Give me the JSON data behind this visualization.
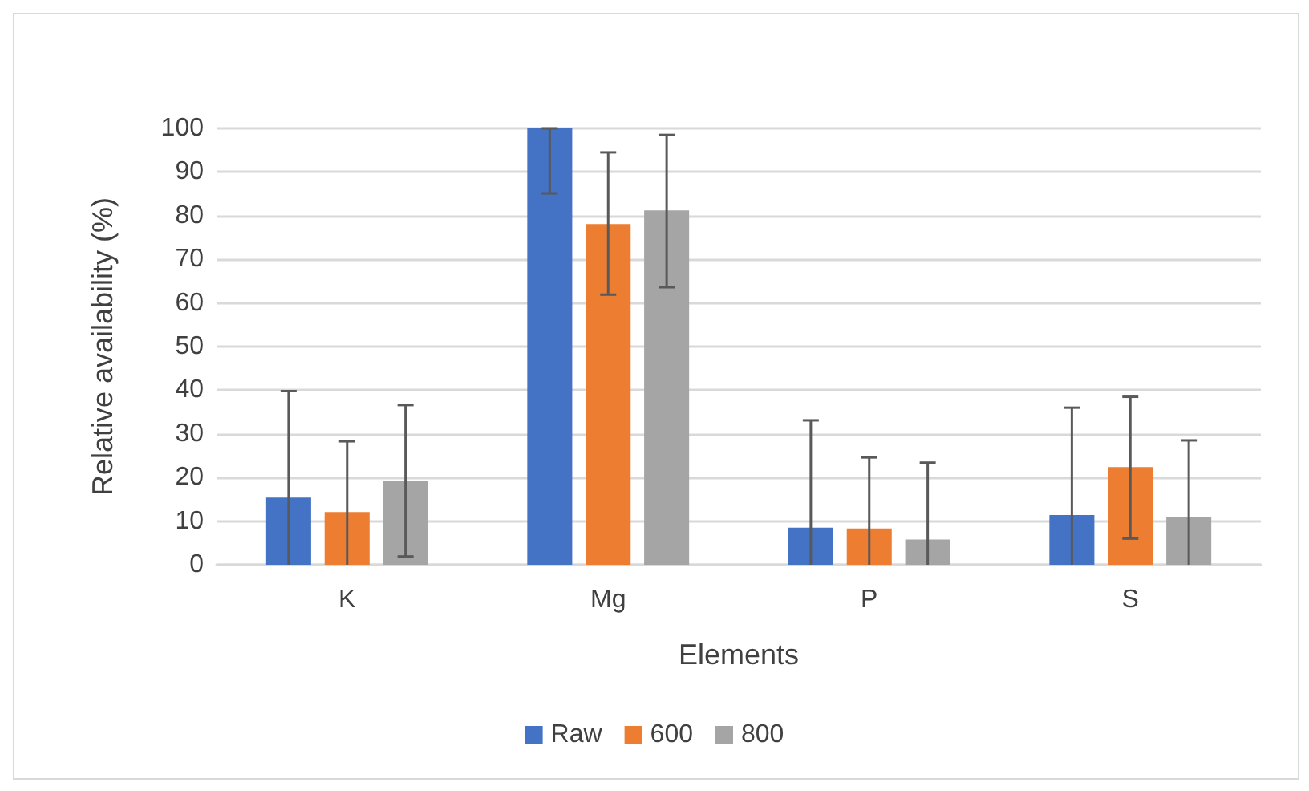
{
  "chart_data": {
    "type": "bar",
    "xlabel": "Elements",
    "ylabel": "Relative availability (%)",
    "categories": [
      "K",
      "Mg",
      "P",
      "S"
    ],
    "series": [
      {
        "name": "Raw",
        "color": "#4472c4",
        "values": [
          15.4,
          100,
          8.5,
          11.4
        ],
        "errors": [
          [
            0,
            39.8
          ],
          [
            85.1,
            100
          ],
          [
            0,
            33.1
          ],
          [
            0,
            36.0
          ]
        ]
      },
      {
        "name": "600",
        "color": "#ed7d31",
        "values": [
          12.1,
          78.1,
          8.3,
          22.4
        ],
        "errors": [
          [
            0,
            28.3
          ],
          [
            61.9,
            94.5
          ],
          [
            0,
            24.6
          ],
          [
            6.0,
            38.5
          ]
        ]
      },
      {
        "name": "800",
        "color": "#a5a5a5",
        "values": [
          19.1,
          81.2,
          5.8,
          11.0
        ],
        "errors": [
          [
            1.9,
            36.6
          ],
          [
            63.6,
            98.5
          ],
          [
            0,
            23.4
          ],
          [
            0,
            28.5
          ]
        ]
      }
    ],
    "ylim": [
      0,
      100
    ],
    "yticks": [
      0,
      10,
      20,
      30,
      40,
      50,
      60,
      70,
      80,
      90,
      100
    ],
    "grid": "y",
    "legend": "bottom"
  }
}
